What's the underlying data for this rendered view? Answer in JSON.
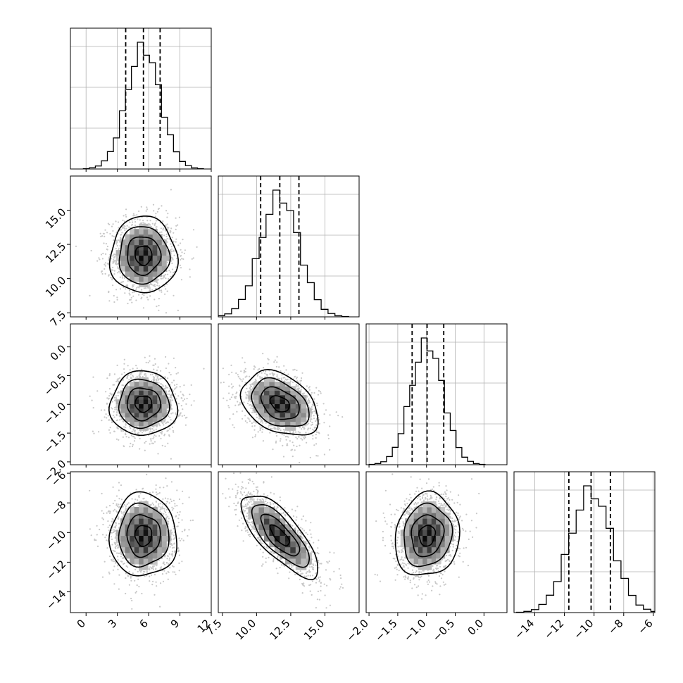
{
  "chart_data": {
    "type": "corner",
    "title": "",
    "grid": true,
    "legend": "none",
    "colors": {
      "ink": "#000000",
      "grid": "#b0b0b0",
      "scatter": "#c8c8c8",
      "frame": "#000000"
    },
    "parameters": [
      {
        "index": 0,
        "range": [
          -1.5,
          12
        ],
        "ticks": [
          0,
          3,
          6,
          9,
          12
        ],
        "tick_labels": [
          "0",
          "3",
          "6",
          "9",
          "12"
        ],
        "quantiles": [
          3.8,
          5.5,
          7.1
        ],
        "center": 5.5,
        "sigma": 1.6
      },
      {
        "index": 1,
        "range": [
          7.2,
          17.5
        ],
        "ticks": [
          7.5,
          10,
          12.5,
          15
        ],
        "tick_labels": [
          "7.5",
          "10.0",
          "12.5",
          "15.0"
        ],
        "quantiles": [
          10.3,
          11.7,
          13.1
        ],
        "center": 11.7,
        "sigma": 1.4
      },
      {
        "index": 2,
        "range": [
          -2.05,
          0.4
        ],
        "ticks": [
          -2,
          -1.5,
          -1,
          -0.5,
          0
        ],
        "tick_labels": [
          "−2.0",
          "−1.5",
          "−1.0",
          "−0.5",
          "0.0"
        ],
        "quantiles": [
          -1.25,
          -0.99,
          -0.7
        ],
        "center": -0.99,
        "sigma": 0.28
      },
      {
        "index": 3,
        "range": [
          -15.4,
          -5.9
        ],
        "ticks": [
          -14,
          -12,
          -10,
          -8,
          -6
        ],
        "tick_labels": [
          "−14",
          "−12",
          "−10",
          "−8",
          "−6"
        ],
        "quantiles": [
          -11.7,
          -10.2,
          -8.9
        ],
        "center": -10.2,
        "sigma": 1.4
      }
    ],
    "correlations": [
      {
        "pair": [
          1,
          0
        ],
        "rho": 0.0
      },
      {
        "pair": [
          2,
          0
        ],
        "rho": 0.0
      },
      {
        "pair": [
          2,
          1
        ],
        "rho": -0.35
      },
      {
        "pair": [
          3,
          0
        ],
        "rho": 0.0
      },
      {
        "pair": [
          3,
          1
        ],
        "rho": -0.75
      },
      {
        "pair": [
          3,
          2
        ],
        "rho": 0.1
      }
    ],
    "histogram_bins": 20,
    "scatter_samples": 1500,
    "contour_levels": [
      0.5,
      1.0,
      1.5,
      2.0
    ]
  }
}
